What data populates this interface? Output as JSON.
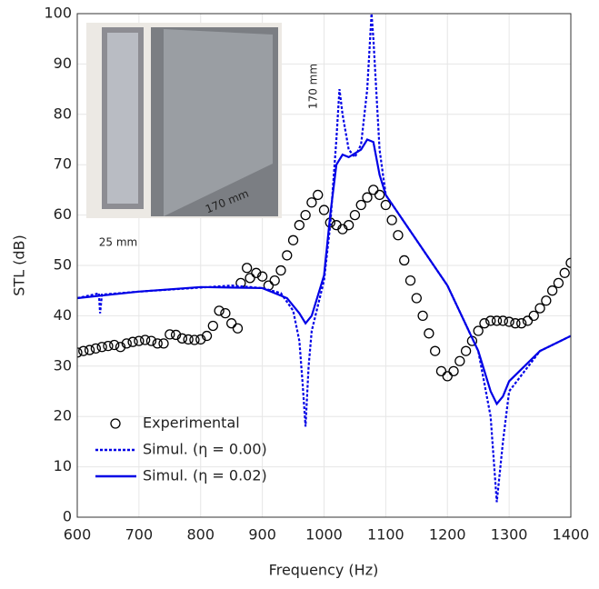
{
  "chart_data": {
    "type": "line",
    "xlabel": "Frequency (Hz)",
    "ylabel": "STL (dB)",
    "xlim": [
      600,
      1400
    ],
    "xticks": [
      600,
      700,
      800,
      900,
      1000,
      1100,
      1200,
      1300,
      1400
    ],
    "ylim": [
      0,
      100
    ],
    "yticks": [
      0,
      10,
      20,
      30,
      40,
      50,
      60,
      70,
      80,
      90,
      100
    ],
    "grid": true,
    "legend": "lower left",
    "annotations": [
      "170 mm",
      "170 mm",
      "25 mm"
    ],
    "series": [
      {
        "name": "Experimental",
        "color": "#000000",
        "marker": "circle",
        "linestyle": "none",
        "x": [
          600,
          610,
          620,
          630,
          640,
          650,
          660,
          670,
          680,
          690,
          700,
          710,
          720,
          730,
          740,
          750,
          760,
          770,
          780,
          790,
          800,
          810,
          820,
          830,
          840,
          850,
          860,
          865,
          875,
          880,
          890,
          900,
          910,
          920,
          930,
          940,
          950,
          960,
          970,
          980,
          990,
          1000,
          1010,
          1020,
          1030,
          1040,
          1050,
          1060,
          1070,
          1080,
          1090,
          1100,
          1110,
          1120,
          1130,
          1140,
          1150,
          1160,
          1170,
          1180,
          1190,
          1200,
          1210,
          1220,
          1230,
          1240,
          1250,
          1260,
          1270,
          1280,
          1290,
          1300,
          1310,
          1320,
          1330,
          1340,
          1350,
          1360,
          1370,
          1380,
          1390,
          1400
        ],
        "values": [
          32.7,
          33,
          33.2,
          33.5,
          33.8,
          34,
          34.2,
          33.8,
          34.5,
          34.8,
          35,
          35.2,
          35,
          34.5,
          34.5,
          36.3,
          36.2,
          35.5,
          35.3,
          35.2,
          35.3,
          36,
          38,
          41,
          40.5,
          38.5,
          37.5,
          46.5,
          49.5,
          47.5,
          48.5,
          47.8,
          46,
          47,
          49,
          52,
          55,
          58,
          60,
          62.5,
          64,
          61,
          58.5,
          58,
          57.2,
          58,
          60,
          62,
          63.5,
          65,
          64,
          62,
          59,
          56,
          51,
          47,
          43.5,
          40,
          36.5,
          33,
          29,
          28,
          29,
          31,
          33,
          35,
          37,
          38.5,
          39,
          39,
          39,
          38.8,
          38.5,
          38.5,
          39,
          40,
          41.5,
          43,
          45,
          46.5,
          48.5,
          50.5
        ]
      },
      {
        "name": "Simul. (η = 0.00)",
        "color": "#0000e6",
        "linestyle": "dotted",
        "x": [
          600,
          630,
          635,
          637,
          640,
          700,
          800,
          850,
          900,
          930,
          950,
          960,
          965,
          970,
          975,
          980,
          990,
          1000,
          1010,
          1020,
          1025,
          1030,
          1040,
          1050,
          1060,
          1070,
          1077,
          1080,
          1090,
          1100,
          1150,
          1200,
          1250,
          1270,
          1280,
          1290,
          1300,
          1350,
          1400
        ],
        "values": [
          43.5,
          44.3,
          44.5,
          40.5,
          44.2,
          44.8,
          45.6,
          46,
          45.5,
          44.5,
          41,
          35,
          27,
          18,
          30,
          37,
          42,
          47,
          58,
          75,
          85,
          80,
          73,
          71.5,
          74,
          85,
          100,
          95,
          73,
          64,
          55,
          46,
          33,
          20,
          3,
          15,
          25,
          33,
          36
        ]
      },
      {
        "name": "Simul. (η = 0.02)",
        "color": "#0000e6",
        "linestyle": "solid",
        "x": [
          600,
          700,
          800,
          900,
          940,
          960,
          970,
          980,
          1000,
          1010,
          1020,
          1030,
          1040,
          1060,
          1070,
          1080,
          1090,
          1100,
          1150,
          1200,
          1250,
          1270,
          1280,
          1290,
          1300,
          1350,
          1400
        ],
        "values": [
          43.5,
          44.8,
          45.7,
          45.5,
          43.5,
          40.5,
          38.5,
          40,
          48,
          60,
          70,
          72,
          71.5,
          73,
          75,
          74.5,
          68,
          64,
          55,
          46,
          33,
          25,
          22.5,
          24,
          27,
          33,
          36
        ]
      }
    ]
  }
}
